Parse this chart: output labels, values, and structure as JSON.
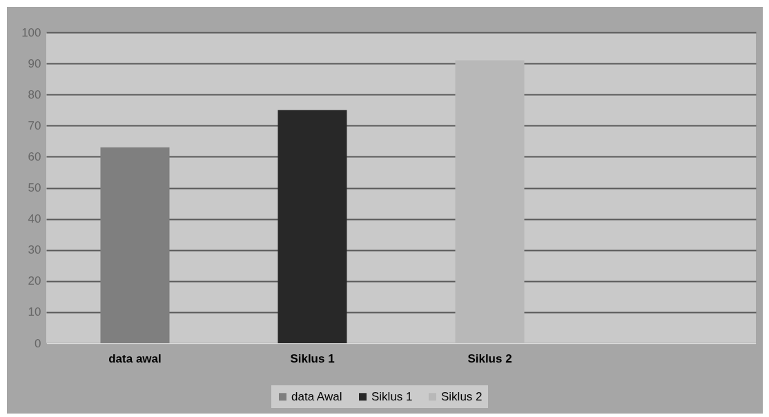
{
  "chart_data": {
    "type": "bar",
    "categories": [
      "data awal",
      "Siklus 1",
      "Siklus 2",
      null
    ],
    "series": [
      {
        "name": "data Awal",
        "color": "#7f7f7f",
        "values": [
          63,
          null,
          null,
          null
        ]
      },
      {
        "name": "Siklus 1",
        "color": "#282828",
        "values": [
          null,
          75,
          null,
          null
        ]
      },
      {
        "name": "Siklus 2",
        "color": "#b8b8b8",
        "values": [
          null,
          null,
          91,
          null
        ]
      }
    ],
    "ylim": [
      0,
      100
    ],
    "yticks": [
      0,
      10,
      20,
      30,
      40,
      50,
      60,
      70,
      80,
      90,
      100
    ],
    "grid": "y",
    "legend": "bottom"
  }
}
